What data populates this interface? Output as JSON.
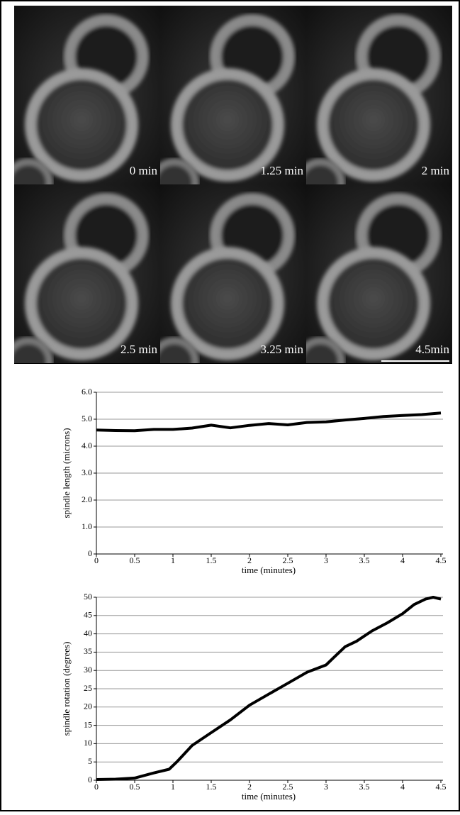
{
  "panels": [
    {
      "label": "0 min"
    },
    {
      "label": "1.25 min"
    },
    {
      "label": "2 min"
    },
    {
      "label": "2.5 min"
    },
    {
      "label": "3.25 min"
    },
    {
      "label": "4.5min"
    }
  ],
  "chart_data": [
    {
      "type": "line",
      "y_label": "spindle length (microns)",
      "x_label": "time (minutes)",
      "color": "#000000",
      "grid": true,
      "x": [
        0,
        0.25,
        0.5,
        0.75,
        1,
        1.25,
        1.5,
        1.75,
        2,
        2.25,
        2.5,
        2.75,
        3,
        3.25,
        3.5,
        3.75,
        4,
        4.25,
        4.5
      ],
      "values": [
        4.6,
        4.58,
        4.57,
        4.62,
        4.62,
        4.67,
        4.78,
        4.68,
        4.77,
        4.84,
        4.79,
        4.88,
        4.9,
        4.97,
        5.03,
        5.1,
        5.14,
        5.17,
        5.23
      ],
      "xlim": [
        0,
        4.5
      ],
      "xticks": [
        0,
        0.5,
        1,
        1.5,
        2,
        2.5,
        3,
        3.5,
        4,
        4.5
      ],
      "ylim": [
        0,
        6
      ],
      "yticks": [
        0,
        {
          "value": 1,
          "label": "1.0"
        },
        {
          "value": 2,
          "label": "2.0"
        },
        {
          "value": 3,
          "label": "3.0"
        },
        {
          "value": 4,
          "label": "4.0"
        },
        {
          "value": 5,
          "label": "5.0"
        },
        {
          "value": 6,
          "label": "6.0"
        }
      ]
    },
    {
      "type": "line",
      "y_label": "spindle rotation (degrees)",
      "x_label": "time (minutes)",
      "color": "#000000",
      "grid": true,
      "x": [
        0,
        0.25,
        0.5,
        0.75,
        0.95,
        1.05,
        1.25,
        1.5,
        1.75,
        2,
        2.25,
        2.5,
        2.75,
        3,
        3.1,
        3.25,
        3.4,
        3.6,
        3.8,
        4,
        4.15,
        4.3,
        4.4,
        4.5
      ],
      "values": [
        0.2,
        0.3,
        0.6,
        2,
        3,
        5,
        9.5,
        13,
        16.5,
        20.5,
        23.5,
        26.5,
        29.5,
        31.5,
        33.5,
        36.5,
        38,
        40.8,
        43,
        45.5,
        48,
        49.5,
        50,
        49.5
      ],
      "xlim": [
        0,
        4.5
      ],
      "xticks": [
        0,
        0.5,
        1,
        1.5,
        2,
        2.5,
        3,
        3.5,
        4,
        4.5
      ],
      "ylim": [
        0,
        50
      ],
      "yticks": [
        0,
        5,
        10,
        15,
        20,
        25,
        30,
        35,
        40,
        45,
        50
      ]
    }
  ]
}
